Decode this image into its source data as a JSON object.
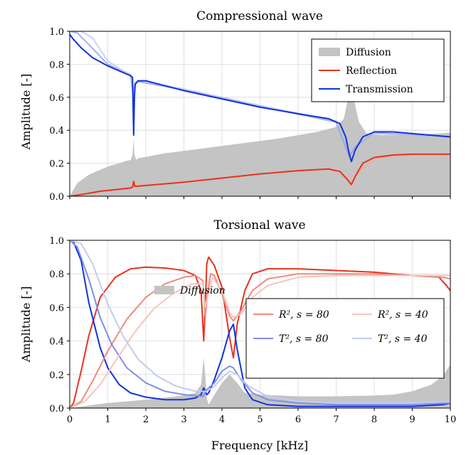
{
  "chart_data": [
    {
      "type": "line",
      "title": "Compressional wave",
      "xlabel": "",
      "ylabel": "Amplitude [-]",
      "xlim": [
        0,
        10
      ],
      "ylim": [
        0,
        1.0
      ],
      "grid": true,
      "legend_position": "top-right",
      "x_ticks": [],
      "y_ticks": [
        "0.0",
        "0.2",
        "0.4",
        "0.6",
        "0.8",
        "1.0"
      ],
      "series": [
        {
          "name": "Diffusion",
          "kind": "area",
          "color": "#c4c4c4",
          "x": [
            0,
            0.2,
            0.5,
            1,
            1.5,
            1.6,
            1.65,
            1.68,
            1.7,
            1.75,
            1.8,
            2.5,
            3.5,
            4.5,
            5.5,
            6.5,
            7,
            7.2,
            7.3,
            7.35,
            7.4,
            7.45,
            7.5,
            7.6,
            7.8,
            8.2,
            9,
            10
          ],
          "y": [
            0,
            0.08,
            0.13,
            0.18,
            0.215,
            0.22,
            0.25,
            0.35,
            0.25,
            0.22,
            0.23,
            0.26,
            0.29,
            0.32,
            0.35,
            0.39,
            0.42,
            0.47,
            0.58,
            0.65,
            0.69,
            0.63,
            0.55,
            0.45,
            0.38,
            0.37,
            0.37,
            0.385
          ]
        },
        {
          "name": "Reflection",
          "kind": "line",
          "color": "#e8321e",
          "x": [
            0,
            0.3,
            0.8,
            1.2,
            1.6,
            1.65,
            1.68,
            1.71,
            1.75,
            2,
            3,
            4,
            5,
            6,
            6.8,
            7.1,
            7.3,
            7.4,
            7.5,
            7.7,
            8,
            8.5,
            9,
            10
          ],
          "y": [
            0,
            0.01,
            0.03,
            0.04,
            0.05,
            0.055,
            0.09,
            0.06,
            0.06,
            0.065,
            0.085,
            0.11,
            0.135,
            0.155,
            0.165,
            0.15,
            0.1,
            0.07,
            0.12,
            0.2,
            0.235,
            0.25,
            0.255,
            0.255
          ]
        },
        {
          "name": "Transmission",
          "kind": "line",
          "color": "#1133dd",
          "x": [
            0,
            0.1,
            0.3,
            0.6,
            1,
            1.4,
            1.6,
            1.65,
            1.68,
            1.7,
            1.72,
            1.8,
            2,
            3,
            4,
            5,
            6,
            6.8,
            7.1,
            7.25,
            7.35,
            7.4,
            7.5,
            7.7,
            8,
            8.5,
            9,
            10
          ],
          "y": [
            0.98,
            0.95,
            0.9,
            0.84,
            0.79,
            0.75,
            0.73,
            0.72,
            0.37,
            0.6,
            0.68,
            0.7,
            0.7,
            0.64,
            0.59,
            0.54,
            0.5,
            0.47,
            0.44,
            0.36,
            0.25,
            0.21,
            0.28,
            0.36,
            0.39,
            0.39,
            0.38,
            0.36
          ]
        },
        {
          "name": "",
          "kind": "line",
          "color": "#7e8fe6",
          "alpha": 0.7,
          "x": [
            0,
            0.2,
            0.5,
            1,
            1.4,
            1.6,
            1.67,
            1.72,
            1.8,
            3,
            5,
            7,
            7.35,
            7.5,
            8,
            10
          ],
          "y": [
            1.0,
            0.99,
            0.92,
            0.8,
            0.755,
            0.735,
            0.6,
            0.68,
            0.695,
            0.645,
            0.545,
            0.45,
            0.24,
            0.3,
            0.385,
            0.36
          ]
        },
        {
          "name": "",
          "kind": "line",
          "color": "#b3bff0",
          "alpha": 0.7,
          "x": [
            0,
            0.3,
            0.6,
            1,
            1.4,
            1.6,
            1.67,
            1.72,
            1.8,
            3,
            5,
            7,
            7.35,
            7.5,
            8,
            10
          ],
          "y": [
            1.0,
            1.0,
            0.96,
            0.82,
            0.76,
            0.74,
            0.64,
            0.69,
            0.7,
            0.65,
            0.55,
            0.455,
            0.26,
            0.31,
            0.38,
            0.36
          ]
        },
        {
          "name": "",
          "kind": "line",
          "color": "#f4a99e",
          "alpha": 0.8,
          "x": [
            0,
            1,
            1.6,
            1.7,
            2,
            3,
            5,
            6.8,
            7.3,
            7.4,
            7.5,
            8,
            9,
            10
          ],
          "y": [
            0,
            0.035,
            0.05,
            0.07,
            0.065,
            0.085,
            0.135,
            0.165,
            0.11,
            0.08,
            0.12,
            0.23,
            0.255,
            0.255
          ]
        }
      ]
    },
    {
      "type": "line",
      "title": "Torsional wave",
      "xlabel": "Frequency [kHz]",
      "ylabel": "Amplitude [-]",
      "xlim": [
        0,
        10
      ],
      "ylim": [
        0,
        1.0
      ],
      "grid": true,
      "legend_position": "center-right",
      "x_ticks": [
        "0",
        "1",
        "2",
        "3",
        "4",
        "5",
        "6",
        "7",
        "8",
        "9",
        "10"
      ],
      "y_ticks": [
        "0.0",
        "0.2",
        "0.4",
        "0.6",
        "0.8",
        "1.0"
      ],
      "series": [
        {
          "name": "Diffusion",
          "kind": "area",
          "color": "#c4c4c4",
          "x": [
            0,
            0.5,
            1,
            2,
            3,
            3.3,
            3.45,
            3.52,
            3.56,
            3.6,
            3.65,
            3.8,
            4,
            4.2,
            4.4,
            4.6,
            5,
            6,
            7,
            8,
            8.5,
            9,
            9.5,
            9.8,
            10
          ],
          "y": [
            0,
            0.015,
            0.03,
            0.05,
            0.075,
            0.09,
            0.14,
            0.3,
            0.2,
            0.06,
            0.02,
            0.08,
            0.15,
            0.2,
            0.15,
            0.09,
            0.08,
            0.07,
            0.07,
            0.075,
            0.08,
            0.1,
            0.14,
            0.19,
            0.26
          ]
        },
        {
          "name": "",
          "kind": "line",
          "color": "#e8321e",
          "x": [
            0,
            0.1,
            0.3,
            0.5,
            0.8,
            1.2,
            1.6,
            2,
            2.5,
            3,
            3.3,
            3.45,
            3.52,
            3.56,
            3.6,
            3.65,
            3.8,
            4,
            4.2,
            4.3,
            4.4,
            4.6,
            4.8,
            5.2,
            6,
            7,
            8,
            9,
            9.7,
            9.9,
            10
          ],
          "y": [
            0,
            0.03,
            0.22,
            0.43,
            0.66,
            0.78,
            0.83,
            0.84,
            0.835,
            0.82,
            0.79,
            0.7,
            0.4,
            0.6,
            0.86,
            0.9,
            0.85,
            0.72,
            0.42,
            0.3,
            0.5,
            0.7,
            0.8,
            0.83,
            0.83,
            0.82,
            0.81,
            0.79,
            0.78,
            0.73,
            0.7
          ]
        },
        {
          "name": "",
          "kind": "line",
          "color": "#1133dd",
          "x": [
            0,
            0.1,
            0.3,
            0.5,
            0.8,
            1,
            1.3,
            1.6,
            2,
            2.5,
            3,
            3.3,
            3.45,
            3.52,
            3.56,
            3.6,
            3.65,
            3.8,
            4,
            4.2,
            4.3,
            4.4,
            4.6,
            4.8,
            5.2,
            6,
            7,
            8,
            9,
            9.8,
            10
          ],
          "y": [
            1.0,
            0.99,
            0.88,
            0.63,
            0.36,
            0.24,
            0.14,
            0.09,
            0.065,
            0.05,
            0.05,
            0.06,
            0.08,
            0.12,
            0.1,
            0.08,
            0.09,
            0.17,
            0.3,
            0.46,
            0.5,
            0.35,
            0.12,
            0.05,
            0.02,
            0.01,
            0.01,
            0.01,
            0.01,
            0.02,
            0.03
          ]
        },
        {
          "name": "R², s = 80",
          "kind": "line",
          "color": "#f08a7c",
          "x": [
            0,
            0.3,
            0.6,
            1,
            1.5,
            2,
            2.5,
            3,
            3.3,
            3.5,
            3.56,
            3.62,
            3.7,
            3.8,
            4,
            4.2,
            4.3,
            4.5,
            4.8,
            5.2,
            6,
            7,
            8,
            9,
            9.8,
            10
          ],
          "y": [
            0,
            0.04,
            0.16,
            0.34,
            0.53,
            0.66,
            0.74,
            0.78,
            0.79,
            0.76,
            0.55,
            0.68,
            0.8,
            0.79,
            0.68,
            0.55,
            0.52,
            0.58,
            0.7,
            0.77,
            0.8,
            0.8,
            0.8,
            0.79,
            0.78,
            0.77
          ]
        },
        {
          "name": "T², s = 80",
          "kind": "line",
          "color": "#7e8fe6",
          "x": [
            0,
            0.2,
            0.5,
            0.8,
            1.1,
            1.5,
            2,
            2.5,
            3,
            3.5,
            3.6,
            3.8,
            4,
            4.2,
            4.3,
            4.5,
            4.8,
            5.2,
            6,
            7,
            8,
            9,
            10
          ],
          "y": [
            1.0,
            0.96,
            0.77,
            0.54,
            0.38,
            0.24,
            0.15,
            0.1,
            0.08,
            0.07,
            0.11,
            0.15,
            0.22,
            0.25,
            0.24,
            0.17,
            0.09,
            0.05,
            0.03,
            0.02,
            0.02,
            0.02,
            0.03
          ]
        },
        {
          "name": "R², s = 40",
          "kind": "line",
          "color": "#f8c4bb",
          "x": [
            0,
            0.4,
            0.8,
            1.2,
            1.7,
            2.2,
            2.7,
            3.2,
            3.5,
            3.56,
            3.62,
            3.75,
            4,
            4.2,
            4.3,
            4.5,
            4.8,
            5.2,
            6,
            7,
            8,
            9,
            10
          ],
          "y": [
            0,
            0.04,
            0.14,
            0.28,
            0.45,
            0.59,
            0.68,
            0.74,
            0.74,
            0.6,
            0.66,
            0.78,
            0.7,
            0.57,
            0.54,
            0.56,
            0.66,
            0.73,
            0.78,
            0.79,
            0.79,
            0.79,
            0.79
          ]
        },
        {
          "name": "T², s = 40",
          "kind": "line",
          "color": "#c3cbf2",
          "x": [
            0,
            0.3,
            0.6,
            1,
            1.4,
            1.8,
            2.3,
            2.8,
            3.3,
            3.6,
            3.8,
            4,
            4.2,
            4.4,
            4.7,
            5.2,
            6,
            7,
            8,
            9,
            10
          ],
          "y": [
            1.0,
            0.98,
            0.86,
            0.62,
            0.43,
            0.29,
            0.19,
            0.13,
            0.1,
            0.1,
            0.13,
            0.18,
            0.22,
            0.2,
            0.13,
            0.07,
            0.04,
            0.03,
            0.03,
            0.03,
            0.04
          ]
        }
      ]
    }
  ]
}
